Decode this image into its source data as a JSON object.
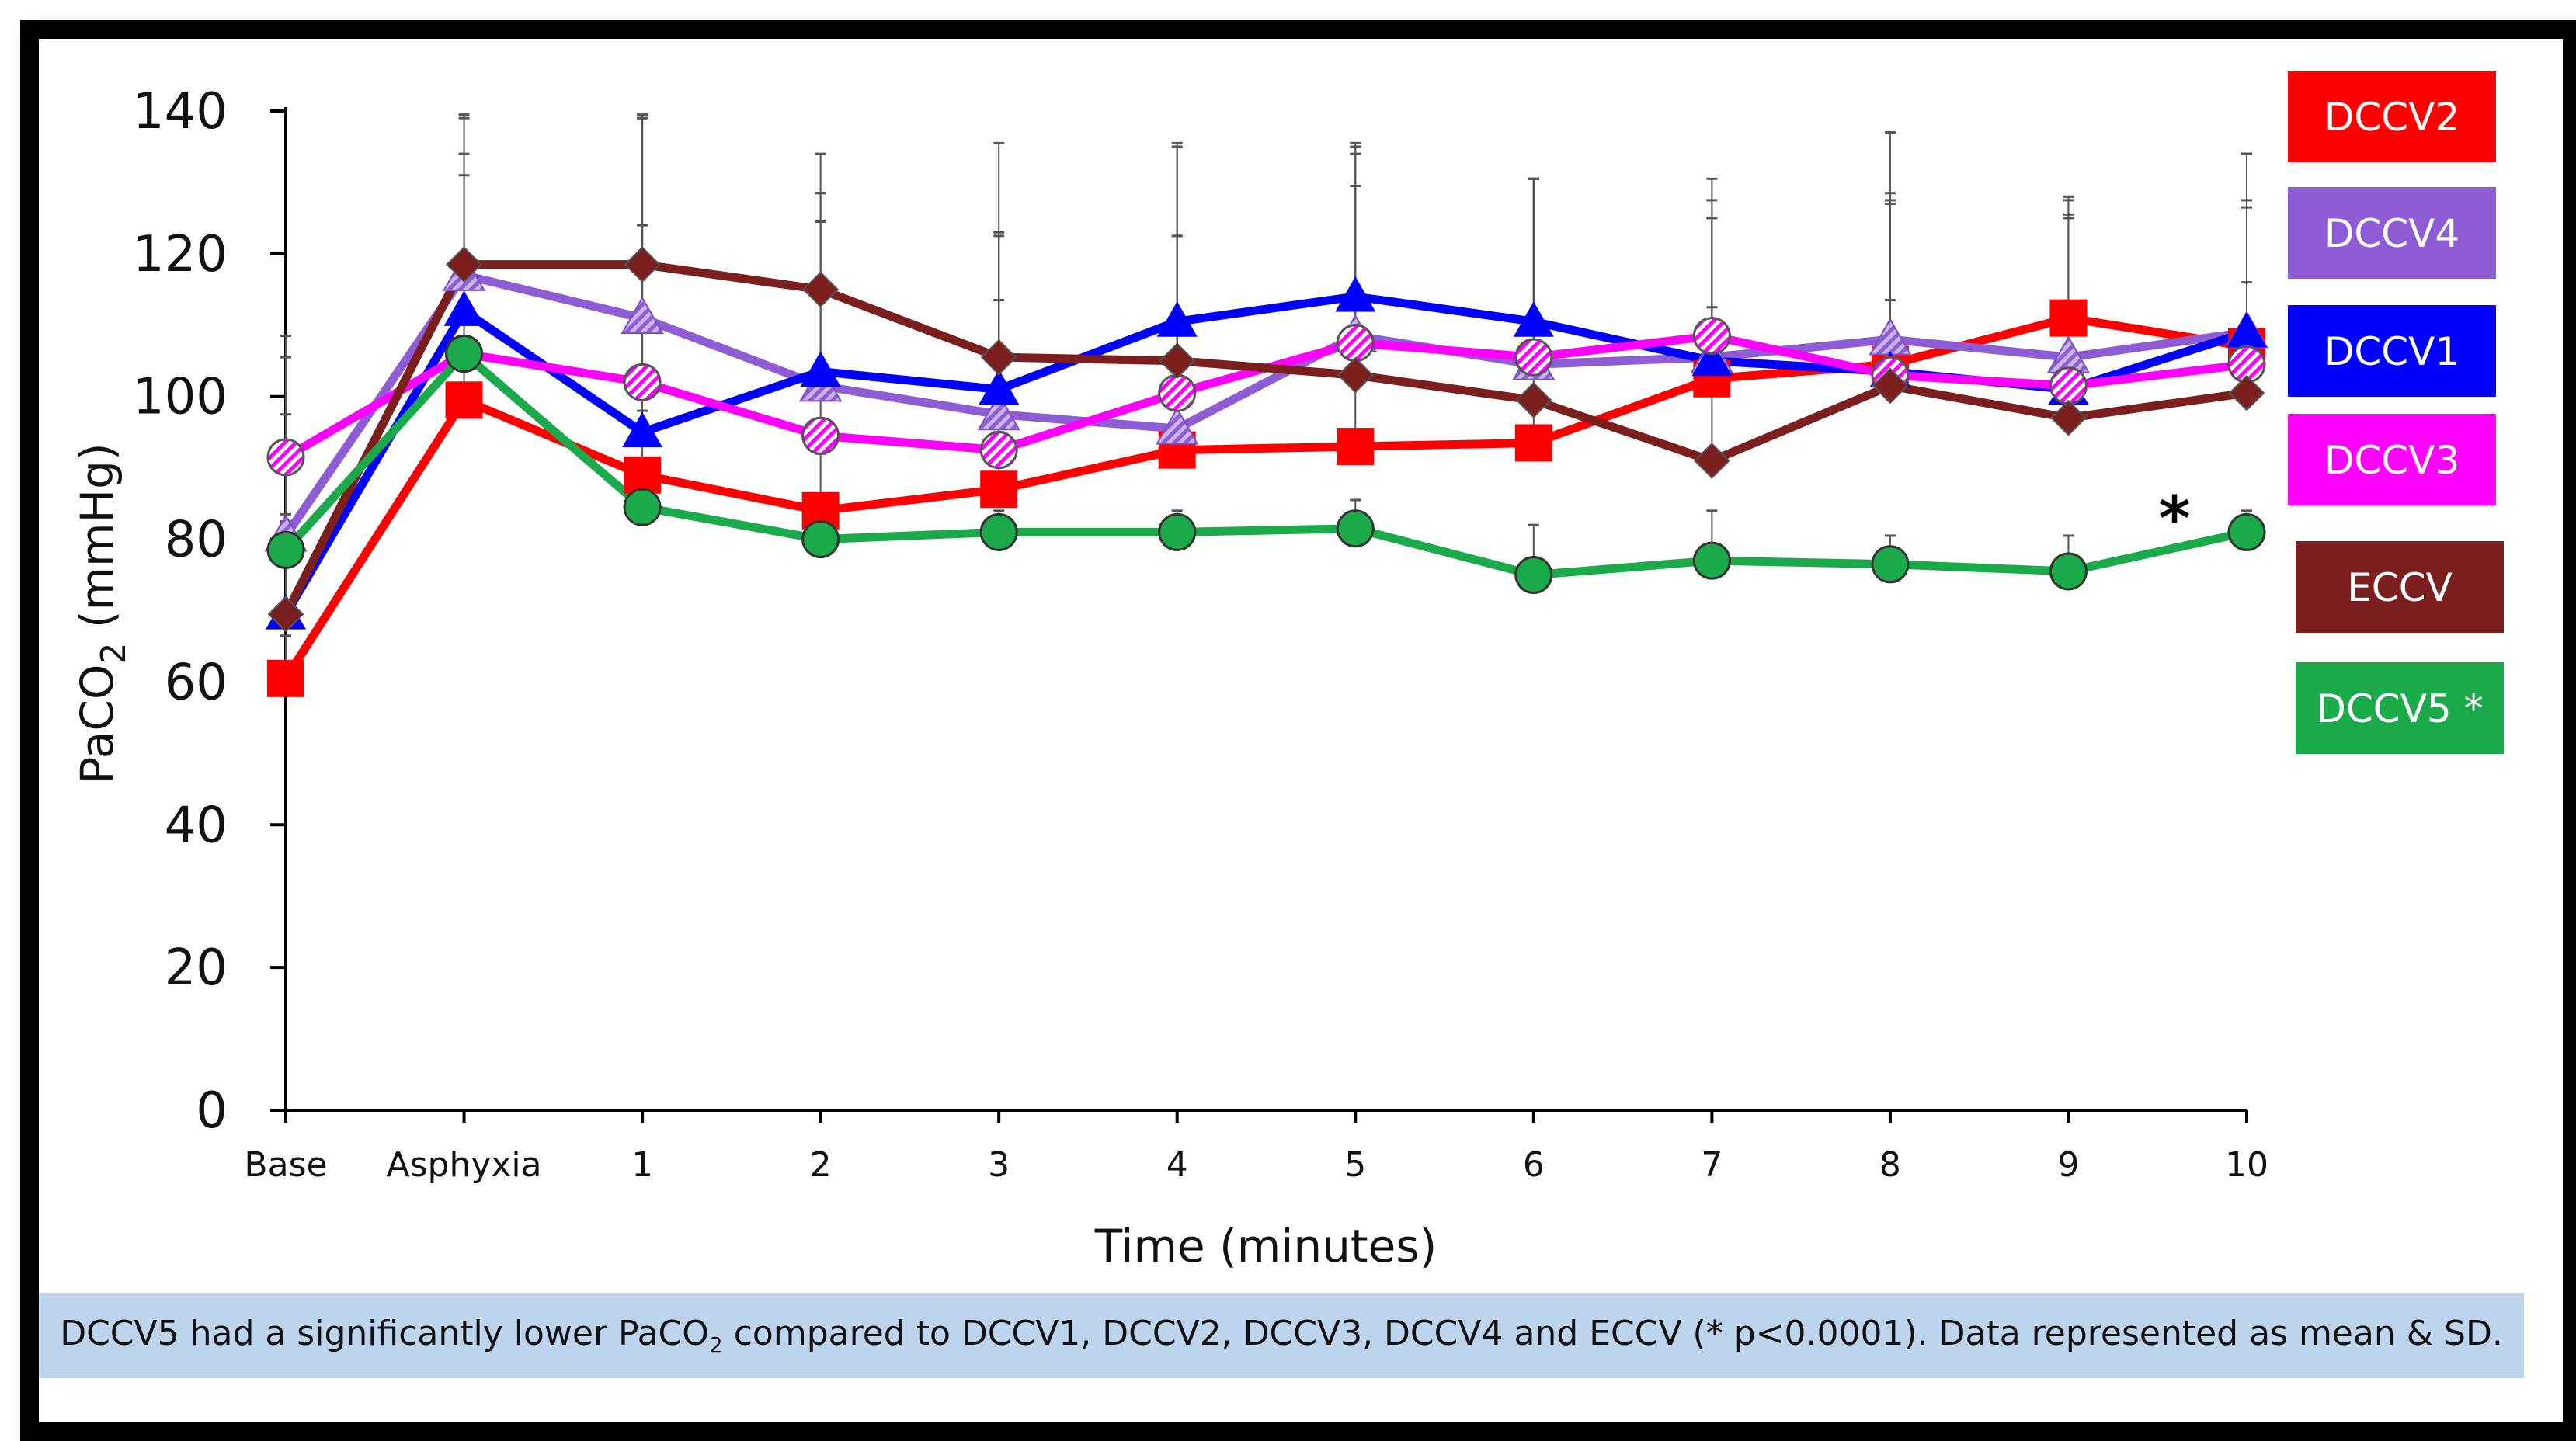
{
  "chart_data": {
    "type": "line",
    "title": "",
    "xlabel": "Time (minutes)",
    "ylabel_main": "PaCO",
    "ylabel_sub": "2",
    "ylabel_unit": " (mmHg)",
    "ylim": [
      0,
      140
    ],
    "yticks": [
      "0",
      "20",
      "40",
      "60",
      "80",
      "100",
      "120",
      "140"
    ],
    "categories": [
      "Base",
      "Asphyxia",
      "1",
      "2",
      "3",
      "4",
      "5",
      "6",
      "7",
      "8",
      "9",
      "10"
    ],
    "significance_marker": "*",
    "series": [
      {
        "name": "DCCV2",
        "color": "#ff0000",
        "marker": "square",
        "values": [
          60.5,
          99.5,
          89,
          84,
          87,
          92.5,
          93,
          93.5,
          102.5,
          104.5,
          111,
          107
        ],
        "sd": [
          6,
          9,
          9,
          8,
          8,
          8,
          9,
          9,
          10,
          9,
          17,
          9
        ]
      },
      {
        "name": "DCCV4",
        "color": "#8e5cd4",
        "marker": "triangle-hatched",
        "values": [
          80.5,
          117,
          111,
          101.5,
          97.5,
          95.5,
          108.5,
          104.5,
          105.5,
          108,
          105.5,
          109
        ],
        "sd": [
          25,
          22,
          28,
          23,
          25,
          27,
          27,
          26,
          22,
          29,
          22,
          25
        ]
      },
      {
        "name": "DCCV1",
        "color": "#0000ff",
        "marker": "triangle",
        "values": [
          69.5,
          112,
          95,
          103.5,
          101,
          110.5,
          114,
          110.5,
          105,
          103.5,
          101,
          109
        ],
        "sd": [
          14,
          22,
          44,
          25,
          22,
          25,
          21,
          20,
          20,
          24,
          27,
          25
        ]
      },
      {
        "name": "DCCV3",
        "color": "#ff00ff",
        "marker": "circle-hatched",
        "values": [
          91.5,
          106,
          102,
          94.5,
          92.5,
          100.5,
          107.5,
          105.5,
          108.5,
          103,
          101.5,
          104.5
        ],
        "sd": [
          17,
          25,
          22,
          34,
          21,
          22,
          22,
          25,
          22,
          24,
          24,
          22
        ]
      },
      {
        "name": "ECCV",
        "color": "#7b1e1e",
        "marker": "diamond",
        "values": [
          69.5,
          118.5,
          118.5,
          115,
          105.5,
          105,
          103,
          99.5,
          91,
          101.5,
          97,
          100.5
        ],
        "sd": [
          28,
          21,
          21,
          19,
          30,
          30,
          31,
          31,
          34,
          27,
          28,
          27
        ]
      },
      {
        "name": "DCCV5 *",
        "color": "#1aaa4a",
        "marker": "circle",
        "values": [
          78.5,
          106,
          84.5,
          80,
          81,
          81,
          81.5,
          75,
          77,
          76.5,
          75.5,
          81
        ],
        "sd": [
          4,
          6,
          3,
          3,
          3,
          3,
          4,
          7,
          7,
          4,
          5,
          3
        ]
      }
    ],
    "legend_position": "right"
  },
  "caption": {
    "part1": "DCCV5 had a significantly lower PaCO",
    "sub": "2",
    "part2": " compared to DCCV1, DCCV2, DCCV3, DCCV4 and ECCV (* p<0.0001). Data represented as mean & SD."
  }
}
